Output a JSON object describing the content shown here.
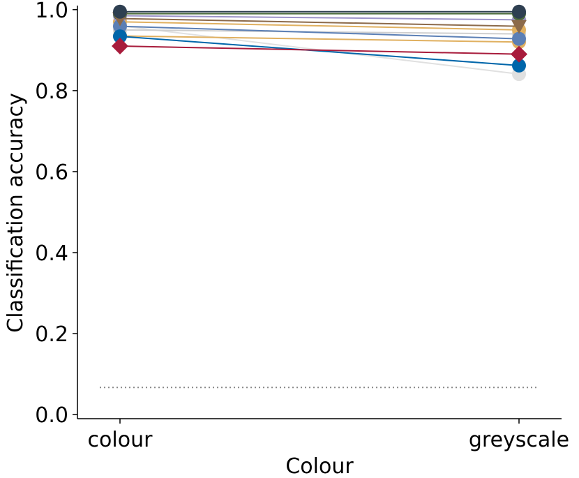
{
  "chart_data": {
    "type": "line",
    "xlabel": "Colour",
    "ylabel": "Classification accuracy",
    "categories": [
      "colour",
      "greyscale"
    ],
    "ylim": [
      -0.01,
      1.01
    ],
    "yticks": [
      {
        "value": 0,
        "label": "0.0"
      },
      0.2,
      0.4,
      0.6,
      0.8,
      {
        "value": 1,
        "label": "1.0"
      }
    ],
    "reference_line": 0.067,
    "reference_color": "#888888",
    "series": [
      {
        "color": "#e0e0e0",
        "marker": "circle",
        "values": [
          0.96,
          0.841
        ]
      },
      {
        "color": "#cfcfcf",
        "marker": "circle",
        "values": [
          0.95,
          0.94
        ]
      },
      {
        "color": "#e0b060",
        "marker": "circle",
        "values": [
          0.935,
          0.92
        ]
      },
      {
        "color": "#e0b060",
        "marker": "circle",
        "values": [
          0.97,
          0.95
        ]
      },
      {
        "color": "#9b93c8",
        "marker": "circle",
        "values": [
          0.985,
          0.975
        ]
      },
      {
        "color": "#4a6a3a",
        "marker": "circle",
        "values": [
          0.99,
          0.99
        ]
      },
      {
        "color": "#5b7fb5",
        "marker": "circle",
        "values": [
          0.959,
          0.928
        ]
      },
      {
        "color": "#8c6a4a",
        "marker": "triangle",
        "values": [
          0.978,
          0.959
        ]
      },
      {
        "color": "#0066aa",
        "marker": "circle",
        "values": [
          0.934,
          0.862
        ]
      },
      {
        "color": "#a81c3c",
        "marker": "diamond",
        "values": [
          0.91,
          0.89
        ]
      },
      {
        "color": "#2e3f51",
        "marker": "circle",
        "values": [
          0.995,
          0.995
        ]
      }
    ]
  }
}
